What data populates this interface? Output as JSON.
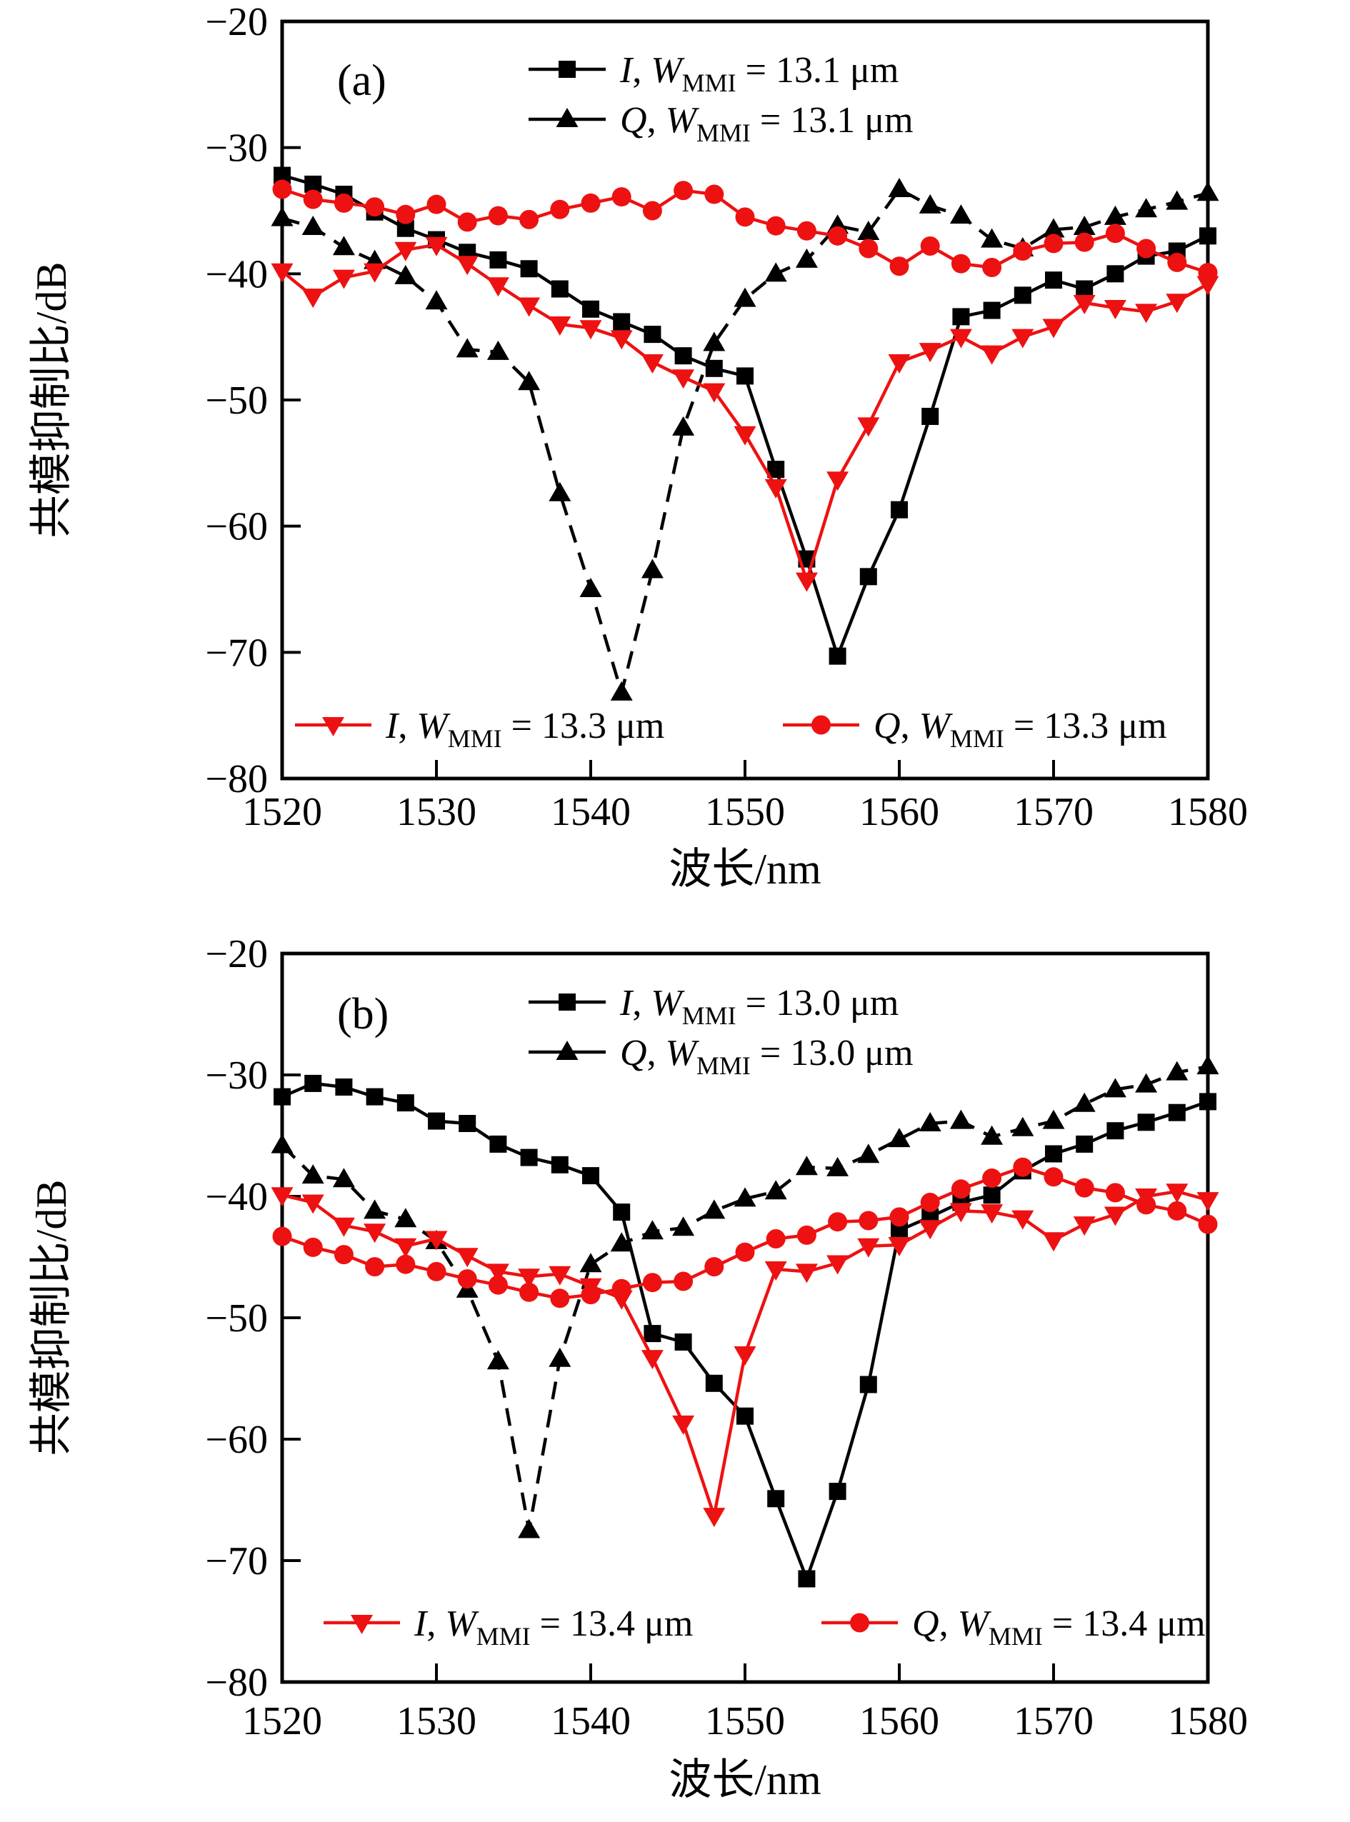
{
  "figure": {
    "background": "#ffffff",
    "black": "#000000",
    "red": "#ee1111"
  },
  "chart_data": [
    {
      "type": "line",
      "panel_label": "(a)",
      "xlabel": "波长/nm",
      "ylabel": "共模抑制比/dB",
      "xlim": [
        1520,
        1580
      ],
      "ylim": [
        -80,
        -20
      ],
      "x_ticks": [
        1520,
        1530,
        1540,
        1550,
        1560,
        1570,
        1580
      ],
      "y_ticks": [
        -20,
        -30,
        -40,
        -50,
        -60,
        -70,
        -80
      ],
      "grid": false,
      "x": [
        1520,
        1522,
        1524,
        1526,
        1528,
        1530,
        1532,
        1534,
        1536,
        1538,
        1540,
        1542,
        1544,
        1546,
        1548,
        1550,
        1552,
        1554,
        1556,
        1558,
        1560,
        1562,
        1564,
        1566,
        1568,
        1570,
        1572,
        1574,
        1576,
        1578,
        1580
      ],
      "series": [
        {
          "label": "I, W_MMI = 13.1 μm",
          "legend_var": "I",
          "legend_comma": ", ",
          "legend_sym": "W",
          "legend_sub": "MMI",
          "legend_rest": " = 13.1 μm",
          "color": "#000000",
          "marker": "square",
          "line": "solid",
          "legend_group": "top",
          "values": [
            -32.2,
            -32.9,
            -33.7,
            -35.1,
            -36.4,
            -37.3,
            -38.3,
            -38.9,
            -39.6,
            -41.2,
            -42.8,
            -43.8,
            -44.8,
            -46.5,
            -47.5,
            -48.1,
            -55.5,
            -62.6,
            -70.3,
            -64.0,
            -58.7,
            -51.3,
            -43.4,
            -42.9,
            -41.7,
            -40.5,
            -41.2,
            -40.0,
            -38.6,
            -38.2,
            -37.0
          ]
        },
        {
          "label": "Q, W_MMI = 13.1 μm",
          "legend_var": "Q",
          "legend_comma": ", ",
          "legend_sym": "W",
          "legend_sub": "MMI",
          "legend_rest": " = 13.1 μm",
          "color": "#000000",
          "marker": "triangle-up",
          "line": "dashed",
          "legend_group": "top",
          "values": [
            -35.6,
            -36.3,
            -37.9,
            -39.0,
            -40.2,
            -42.2,
            -46.0,
            -46.2,
            -48.6,
            -57.4,
            -65.0,
            -73.2,
            -63.5,
            -52.2,
            -45.5,
            -42.0,
            -40.0,
            -38.9,
            -36.2,
            -36.7,
            -33.3,
            -34.6,
            -35.4,
            -37.3,
            -38.0,
            -36.5,
            -36.3,
            -35.5,
            -34.9,
            -34.3,
            -33.6
          ]
        },
        {
          "label": "I, W_MMI = 13.3 μm",
          "legend_var": "I",
          "legend_comma": ", ",
          "legend_sym": "W",
          "legend_sub": "MMI",
          "legend_rest": " = 13.3 μm",
          "color": "#ee1111",
          "marker": "triangle-down",
          "line": "solid",
          "legend_group": "bottom",
          "values": [
            -39.8,
            -41.8,
            -40.3,
            -39.8,
            -38.1,
            -37.7,
            -39.2,
            -40.9,
            -42.5,
            -44.0,
            -44.3,
            -45.1,
            -47.0,
            -48.2,
            -49.3,
            -52.7,
            -56.9,
            -64.3,
            -56.3,
            -52.0,
            -47.0,
            -46.1,
            -45.0,
            -46.3,
            -45.0,
            -44.2,
            -42.3,
            -42.7,
            -43.0,
            -42.2,
            -40.8
          ]
        },
        {
          "label": "Q, W_MMI = 13.3 μm",
          "legend_var": "Q",
          "legend_comma": ", ",
          "legend_sym": "W",
          "legend_sub": "MMI",
          "legend_rest": " = 13.3 μm",
          "color": "#ee1111",
          "marker": "circle",
          "line": "solid",
          "legend_group": "bottom",
          "values": [
            -33.3,
            -34.1,
            -34.4,
            -34.7,
            -35.3,
            -34.5,
            -35.9,
            -35.4,
            -35.7,
            -34.9,
            -34.4,
            -33.9,
            -35.0,
            -33.4,
            -33.7,
            -35.5,
            -36.2,
            -36.6,
            -37.0,
            -38.0,
            -39.4,
            -37.8,
            -39.2,
            -39.5,
            -38.2,
            -37.6,
            -37.5,
            -36.8,
            -38.0,
            -39.1,
            -39.9
          ]
        }
      ]
    },
    {
      "type": "line",
      "panel_label": "(b)",
      "xlabel": "波长/nm",
      "ylabel": "共模抑制比/dB",
      "xlim": [
        1520,
        1580
      ],
      "ylim": [
        -80,
        -20
      ],
      "x_ticks": [
        1520,
        1530,
        1540,
        1550,
        1560,
        1570,
        1580
      ],
      "y_ticks": [
        -20,
        -30,
        -40,
        -50,
        -60,
        -70,
        -80
      ],
      "grid": false,
      "x": [
        1520,
        1522,
        1524,
        1526,
        1528,
        1530,
        1532,
        1534,
        1536,
        1538,
        1540,
        1542,
        1544,
        1546,
        1548,
        1550,
        1552,
        1554,
        1556,
        1558,
        1560,
        1562,
        1564,
        1566,
        1568,
        1570,
        1572,
        1574,
        1576,
        1578,
        1580
      ],
      "series": [
        {
          "label": "I, W_MMI = 13.0 μm",
          "legend_var": "I",
          "legend_comma": ", ",
          "legend_sym": "W",
          "legend_sub": "MMI",
          "legend_rest": " = 13.0 μm",
          "color": "#000000",
          "marker": "square",
          "line": "solid",
          "legend_group": "top",
          "values": [
            -31.8,
            -30.7,
            -31.0,
            -31.8,
            -32.3,
            -33.8,
            -34.0,
            -35.7,
            -36.8,
            -37.4,
            -38.3,
            -41.3,
            -51.3,
            -52.0,
            -55.4,
            -58.1,
            -64.9,
            -71.5,
            -64.3,
            -55.5,
            -42.8,
            -41.7,
            -40.5,
            -39.9,
            -37.9,
            -36.5,
            -35.7,
            -34.6,
            -33.9,
            -33.1,
            -32.2
          ]
        },
        {
          "label": "Q, W_MMI = 13.0 μm",
          "legend_var": "Q",
          "legend_comma": ", ",
          "legend_sym": "W",
          "legend_sub": "MMI",
          "legend_rest": " = 13.0 μm",
          "color": "#000000",
          "marker": "triangle-up",
          "line": "dashed",
          "legend_group": "top",
          "values": [
            -35.8,
            -38.3,
            -38.6,
            -41.2,
            -41.9,
            -43.7,
            -47.7,
            -53.6,
            -67.5,
            -53.4,
            -45.6,
            -43.9,
            -42.9,
            -42.6,
            -41.2,
            -40.2,
            -39.6,
            -37.6,
            -37.7,
            -36.6,
            -35.3,
            -34.0,
            -33.8,
            -35.1,
            -34.4,
            -33.8,
            -32.4,
            -31.2,
            -30.8,
            -29.8,
            -29.3
          ]
        },
        {
          "label": "I, W_MMI = 13.4 μm",
          "legend_var": "I",
          "legend_comma": ", ",
          "legend_sym": "W",
          "legend_sub": "MMI",
          "legend_rest": " = 13.4 μm",
          "color": "#ee1111",
          "marker": "triangle-down",
          "line": "solid",
          "legend_group": "bottom",
          "values": [
            -39.9,
            -40.5,
            -42.4,
            -42.9,
            -44.1,
            -43.5,
            -44.9,
            -46.2,
            -46.6,
            -46.4,
            -47.4,
            -48.4,
            -53.3,
            -58.7,
            -66.3,
            -53.0,
            -46.0,
            -46.2,
            -45.5,
            -44.1,
            -44.0,
            -42.6,
            -41.2,
            -41.3,
            -41.8,
            -43.6,
            -42.3,
            -41.5,
            -40.0,
            -39.6,
            -40.3
          ]
        },
        {
          "label": "Q, W_MMI = 13.4 μm",
          "legend_var": "Q",
          "legend_comma": ", ",
          "legend_sym": "W",
          "legend_sub": "MMI",
          "legend_rest": " = 13.4 μm",
          "color": "#ee1111",
          "marker": "circle",
          "line": "solid",
          "legend_group": "bottom",
          "values": [
            -43.3,
            -44.2,
            -44.8,
            -45.8,
            -45.6,
            -46.2,
            -46.8,
            -47.3,
            -47.9,
            -48.4,
            -48.1,
            -47.6,
            -47.1,
            -47.0,
            -45.8,
            -44.6,
            -43.5,
            -43.2,
            -42.1,
            -42.0,
            -41.7,
            -40.5,
            -39.4,
            -38.5,
            -37.6,
            -38.4,
            -39.3,
            -39.7,
            -40.7,
            -41.2,
            -42.3
          ]
        }
      ]
    }
  ]
}
